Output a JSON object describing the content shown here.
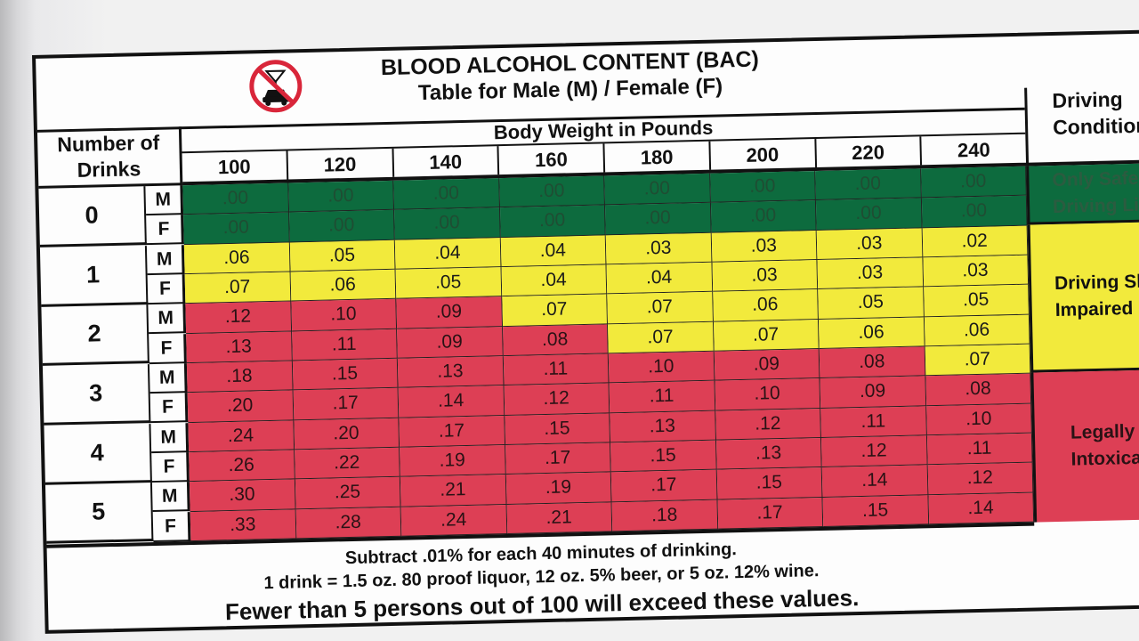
{
  "title": "BLOOD ALCOHOL CONTENT (BAC)",
  "subtitle": "Table for Male (M) / Female (F)",
  "logo_icon": "no-drinking-and-driving-icon",
  "corner_label": "Number of Drinks",
  "body_weight_label": "Body Weight in Pounds",
  "driving_condition_label": "Driving Condition",
  "weights": [
    "100",
    "120",
    "140",
    "160",
    "180",
    "200",
    "220",
    "240"
  ],
  "sexes": [
    "M",
    "F"
  ],
  "rows": [
    {
      "drinks": "0",
      "sex": "M",
      "values": [
        ".00",
        ".00",
        ".00",
        ".00",
        ".00",
        ".00",
        ".00",
        ".00"
      ],
      "zones": [
        "green",
        "green",
        "green",
        "green",
        "green",
        "green",
        "green",
        "green"
      ]
    },
    {
      "drinks": "0",
      "sex": "F",
      "values": [
        ".00",
        ".00",
        ".00",
        ".00",
        ".00",
        ".00",
        ".00",
        ".00"
      ],
      "zones": [
        "green",
        "green",
        "green",
        "green",
        "green",
        "green",
        "green",
        "green"
      ]
    },
    {
      "drinks": "1",
      "sex": "M",
      "values": [
        ".06",
        ".05",
        ".04",
        ".04",
        ".03",
        ".03",
        ".03",
        ".02"
      ],
      "zones": [
        "yellow",
        "yellow",
        "yellow",
        "yellow",
        "yellow",
        "yellow",
        "yellow",
        "yellow"
      ]
    },
    {
      "drinks": "1",
      "sex": "F",
      "values": [
        ".07",
        ".06",
        ".05",
        ".04",
        ".04",
        ".03",
        ".03",
        ".03"
      ],
      "zones": [
        "yellow",
        "yellow",
        "yellow",
        "yellow",
        "yellow",
        "yellow",
        "yellow",
        "yellow"
      ]
    },
    {
      "drinks": "2",
      "sex": "M",
      "values": [
        ".12",
        ".10",
        ".09",
        ".07",
        ".07",
        ".06",
        ".05",
        ".05"
      ],
      "zones": [
        "red",
        "red",
        "red",
        "yellow",
        "yellow",
        "yellow",
        "yellow",
        "yellow"
      ]
    },
    {
      "drinks": "2",
      "sex": "F",
      "values": [
        ".13",
        ".11",
        ".09",
        ".08",
        ".07",
        ".07",
        ".06",
        ".06"
      ],
      "zones": [
        "red",
        "red",
        "red",
        "red",
        "yellow",
        "yellow",
        "yellow",
        "yellow"
      ]
    },
    {
      "drinks": "3",
      "sex": "M",
      "values": [
        ".18",
        ".15",
        ".13",
        ".11",
        ".10",
        ".09",
        ".08",
        ".07"
      ],
      "zones": [
        "red",
        "red",
        "red",
        "red",
        "red",
        "red",
        "red",
        "yellow"
      ]
    },
    {
      "drinks": "3",
      "sex": "F",
      "values": [
        ".20",
        ".17",
        ".14",
        ".12",
        ".11",
        ".10",
        ".09",
        ".08"
      ],
      "zones": [
        "red",
        "red",
        "red",
        "red",
        "red",
        "red",
        "red",
        "red"
      ]
    },
    {
      "drinks": "4",
      "sex": "M",
      "values": [
        ".24",
        ".20",
        ".17",
        ".15",
        ".13",
        ".12",
        ".11",
        ".10"
      ],
      "zones": [
        "red",
        "red",
        "red",
        "red",
        "red",
        "red",
        "red",
        "red"
      ]
    },
    {
      "drinks": "4",
      "sex": "F",
      "values": [
        ".26",
        ".22",
        ".19",
        ".17",
        ".15",
        ".13",
        ".12",
        ".11"
      ],
      "zones": [
        "red",
        "red",
        "red",
        "red",
        "red",
        "red",
        "red",
        "red"
      ]
    },
    {
      "drinks": "5",
      "sex": "M",
      "values": [
        ".30",
        ".25",
        ".21",
        ".19",
        ".17",
        ".15",
        ".14",
        ".12"
      ],
      "zones": [
        "red",
        "red",
        "red",
        "red",
        "red",
        "red",
        "red",
        "red"
      ]
    },
    {
      "drinks": "5",
      "sex": "F",
      "values": [
        ".33",
        ".28",
        ".24",
        ".21",
        ".18",
        ".17",
        ".15",
        ".14"
      ],
      "zones": [
        "red",
        "red",
        "red",
        "red",
        "red",
        "red",
        "red",
        "red"
      ]
    }
  ],
  "drink_counts": [
    "0",
    "1",
    "2",
    "3",
    "4",
    "5"
  ],
  "conditions": {
    "green": "Only Safe Driving Limit",
    "yellow": "Driving Skills Impaired",
    "red": "Legally Intoxicated"
  },
  "zone_colors": {
    "green": "#0d6b3e",
    "yellow": "#f2ea3c",
    "red": "#dd3f55"
  },
  "footer": {
    "line1": "Subtract .01% for each 40 minutes of drinking.",
    "line2": "1 drink = 1.5 oz. 80 proof liquor, 12 oz. 5% beer, or 5 oz. 12% wine.",
    "line3": "Fewer than 5 persons out of 100 will exceed these values."
  }
}
